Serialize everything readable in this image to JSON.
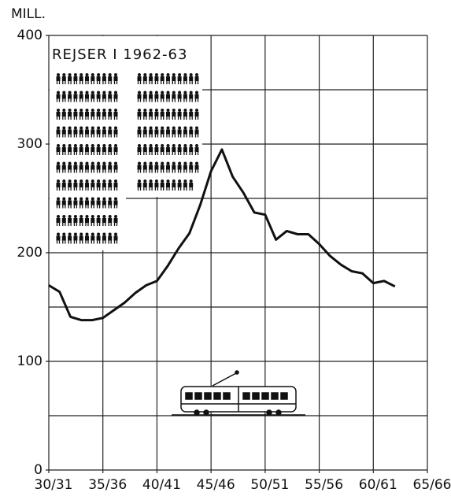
{
  "chart_data": {
    "type": "line",
    "y_label": "MILL.",
    "annotation": "REJSER I 1962-63",
    "x": [
      1930,
      1931,
      1932,
      1933,
      1934,
      1935,
      1936,
      1937,
      1938,
      1939,
      1940,
      1941,
      1942,
      1943,
      1944,
      1945,
      1946,
      1947,
      1948,
      1949,
      1950,
      1951,
      1952,
      1953,
      1954,
      1955,
      1956,
      1957,
      1958,
      1959,
      1960,
      1961,
      1962
    ],
    "series": [
      {
        "color": "#111111",
        "values": [
          170,
          164,
          141,
          138,
          138,
          140,
          147,
          154,
          163,
          170,
          174,
          188,
          204,
          218,
          244,
          275,
          295,
          270,
          255,
          237,
          235,
          212,
          220,
          217,
          217,
          208,
          197,
          189,
          183,
          181,
          172,
          174,
          169
        ]
      }
    ],
    "xlim": [
      1930,
      1965
    ],
    "xticks": [
      {
        "value": 1930,
        "label": "30/31"
      },
      {
        "value": 1935,
        "label": "35/36"
      },
      {
        "value": 1940,
        "label": "40/41"
      },
      {
        "value": 1945,
        "label": "45/46"
      },
      {
        "value": 1950,
        "label": "50/51"
      },
      {
        "value": 1955,
        "label": "55/56"
      },
      {
        "value": 1960,
        "label": "60/61"
      },
      {
        "value": 1965,
        "label": "65/66"
      }
    ],
    "ylim": [
      0,
      400
    ],
    "yticks": [
      0,
      100,
      200,
      300,
      400
    ],
    "minor_yticks": [
      50,
      150,
      250,
      350
    ],
    "grid": true
  }
}
